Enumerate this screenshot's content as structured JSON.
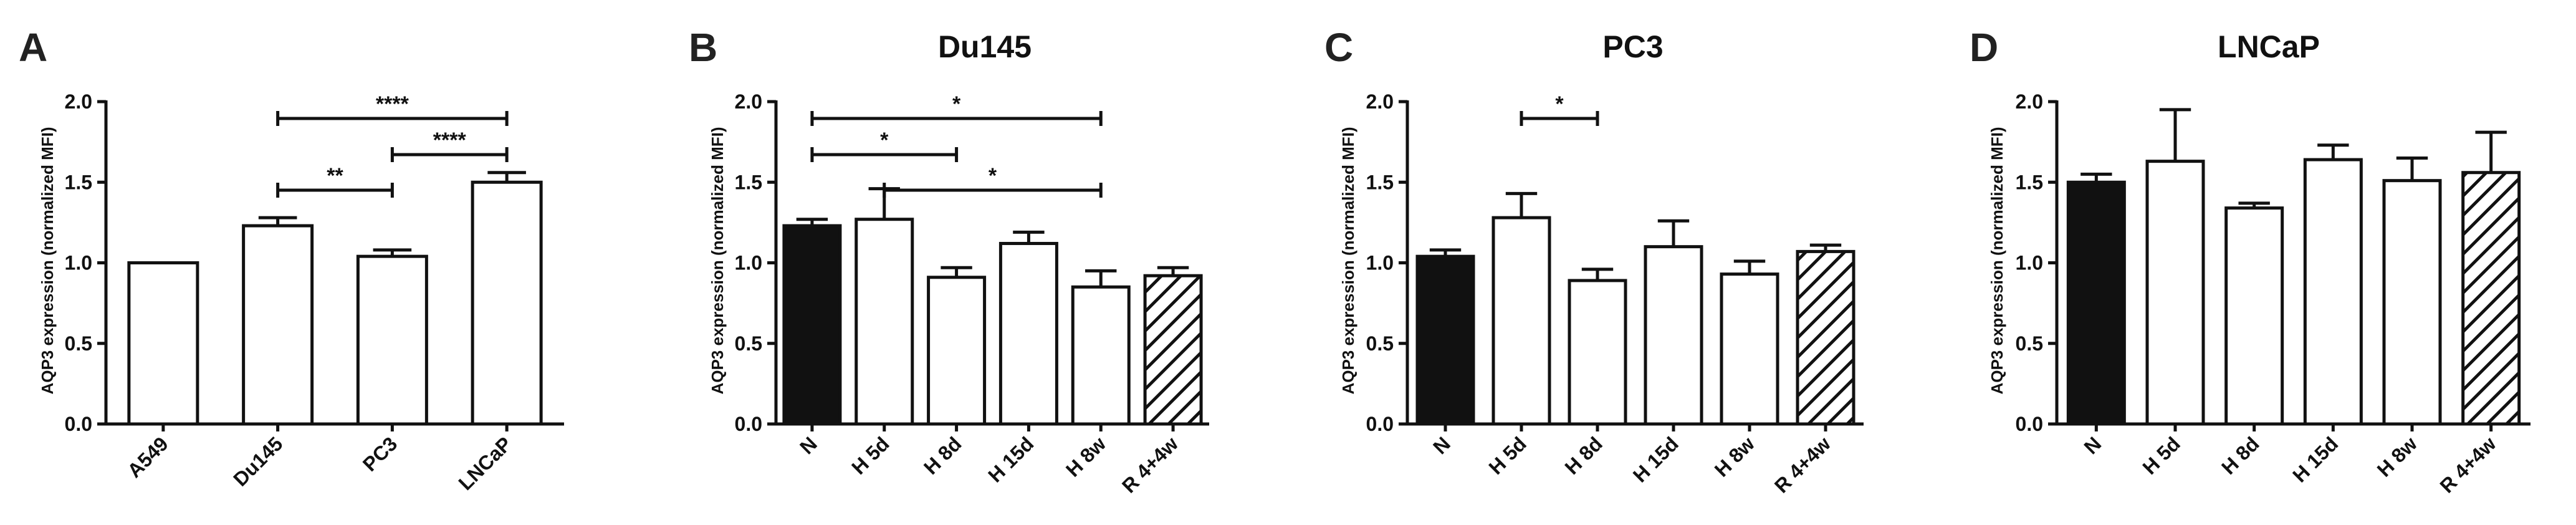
{
  "chart_data": [
    {
      "type": "bar",
      "panel": "A",
      "title": "",
      "ylabel": "AQP3 expression (normalized MFI)",
      "xlabel": "",
      "ylim": [
        0,
        2.0
      ],
      "yticks": [
        "0.0",
        "0.5",
        "1.0",
        "1.5",
        "2.0"
      ],
      "categories": [
        "A549",
        "Du145",
        "PC3",
        "LNCaP"
      ],
      "values": [
        1.0,
        1.23,
        1.04,
        1.5
      ],
      "errors": [
        0,
        0.05,
        0.04,
        0.06
      ],
      "fills": [
        "white",
        "white",
        "white",
        "white"
      ],
      "significance": [
        {
          "from": 1,
          "to": 3,
          "label": "****"
        },
        {
          "from": 2,
          "to": 3,
          "label": "****"
        },
        {
          "from": 1,
          "to": 2,
          "label": "**"
        }
      ]
    },
    {
      "type": "bar",
      "panel": "B",
      "title": "Du145",
      "ylabel": "AQP3 expression (normalized MFI)",
      "xlabel": "",
      "ylim": [
        0,
        2.0
      ],
      "yticks": [
        "0.0",
        "0.5",
        "1.0",
        "1.5",
        "2.0"
      ],
      "categories": [
        "N",
        "H 5d",
        "H 8d",
        "H 15d",
        "H 8w",
        "R 4+4w"
      ],
      "values": [
        1.23,
        1.27,
        0.91,
        1.12,
        0.85,
        0.92
      ],
      "errors": [
        0.04,
        0.19,
        0.06,
        0.07,
        0.1,
        0.05
      ],
      "fills": [
        "black",
        "white",
        "white",
        "white",
        "white",
        "hatch"
      ],
      "significance": [
        {
          "from": 0,
          "to": 4,
          "label": "*"
        },
        {
          "from": 0,
          "to": 2,
          "label": "*"
        },
        {
          "from": 1,
          "to": 4,
          "label": "*"
        }
      ]
    },
    {
      "type": "bar",
      "panel": "C",
      "title": "PC3",
      "ylabel": "AQP3 expression (normalized MFI)",
      "xlabel": "",
      "ylim": [
        0,
        2.0
      ],
      "yticks": [
        "0.0",
        "0.5",
        "1.0",
        "1.5",
        "2.0"
      ],
      "categories": [
        "N",
        "H 5d",
        "H 8d",
        "H 15d",
        "H 8w",
        "R 4+4w"
      ],
      "values": [
        1.04,
        1.28,
        0.89,
        1.1,
        0.93,
        1.07
      ],
      "errors": [
        0.04,
        0.15,
        0.07,
        0.16,
        0.08,
        0.04
      ],
      "fills": [
        "black",
        "white",
        "white",
        "white",
        "white",
        "hatch"
      ],
      "significance": [
        {
          "from": 1,
          "to": 2,
          "label": "*"
        }
      ]
    },
    {
      "type": "bar",
      "panel": "D",
      "title": "LNCaP",
      "ylabel": "AQP3 expression (normalized MFI)",
      "xlabel": "",
      "ylim": [
        0,
        2.0
      ],
      "yticks": [
        "0.0",
        "0.5",
        "1.0",
        "1.5",
        "2.0"
      ],
      "categories": [
        "N",
        "H 5d",
        "H 8d",
        "H 15d",
        "H 8w",
        "R 4+4w"
      ],
      "values": [
        1.5,
        1.63,
        1.34,
        1.64,
        1.51,
        1.56
      ],
      "errors": [
        0.05,
        0.32,
        0.03,
        0.09,
        0.14,
        0.25
      ],
      "fills": [
        "black",
        "white",
        "white",
        "white",
        "white",
        "hatch"
      ],
      "significance": []
    }
  ]
}
